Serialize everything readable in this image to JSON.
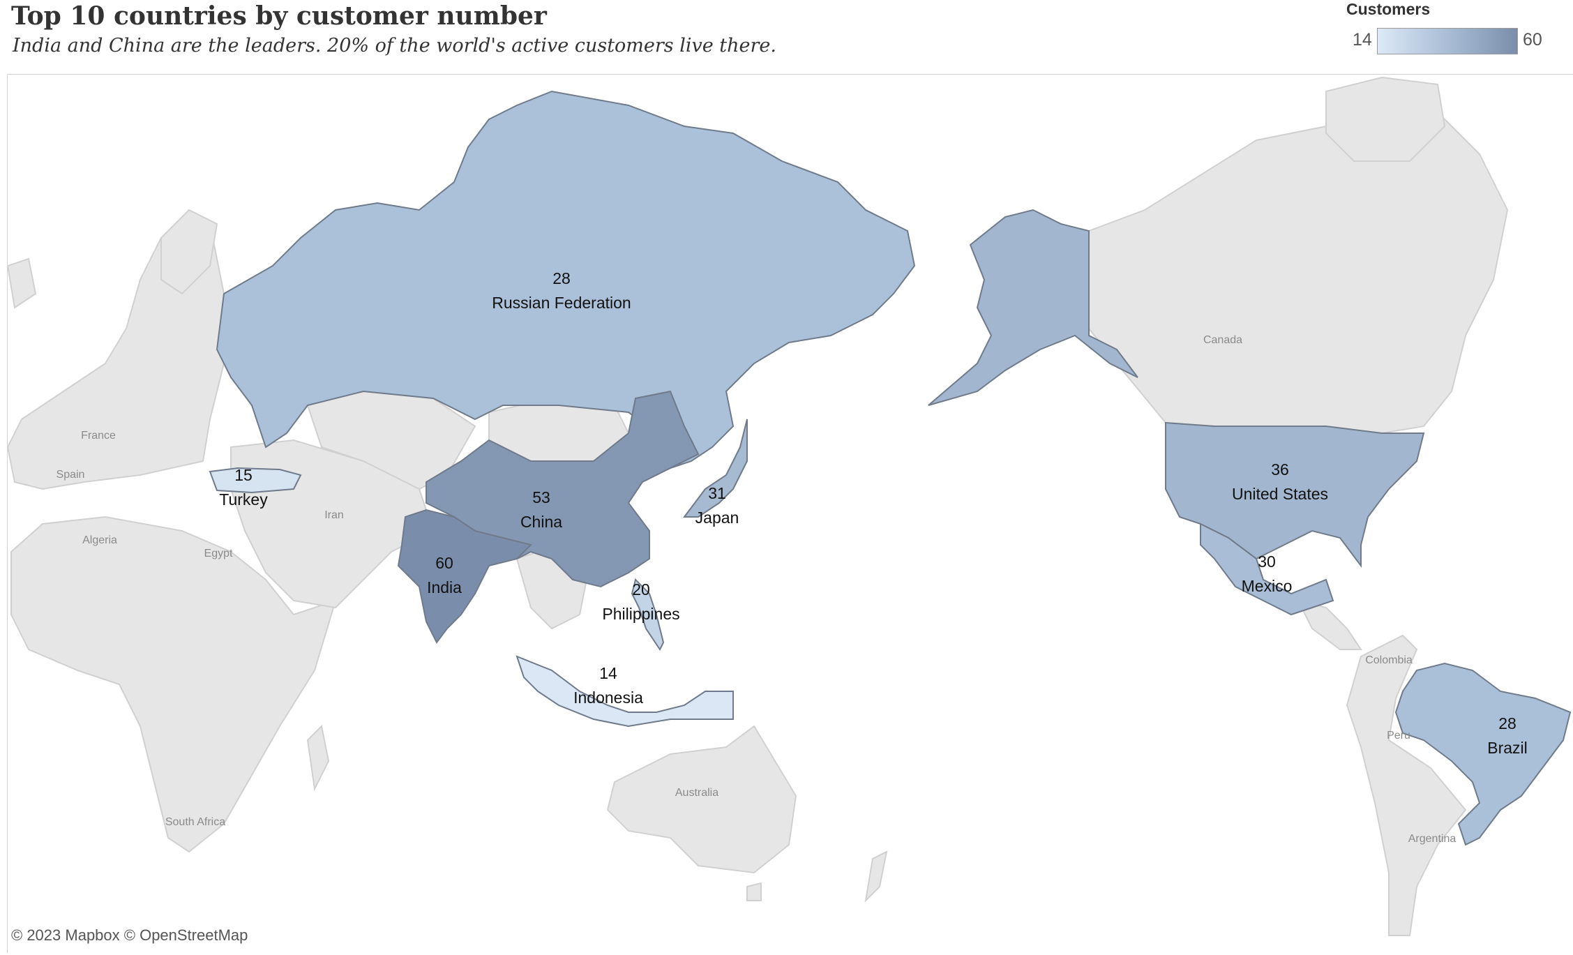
{
  "title": "Top 10 countries by customer number",
  "subtitle": "India and China are the leaders. 20% of the world's active customers live there.",
  "legend": {
    "title": "Customers",
    "min": "14",
    "max": "60",
    "color_min": "#dce9f6",
    "color_max": "#7a8eab"
  },
  "credits": "© 2023 Mapbox © OpenStreetMap",
  "base_labels": {
    "canada": "Canada",
    "france": "France",
    "spain": "Spain",
    "algeria": "Algeria",
    "egypt": "Egypt",
    "iran": "Iran",
    "australia": "Australia",
    "south_africa": "South Africa",
    "colombia": "Colombia",
    "peru": "Peru",
    "argentina": "Argentina"
  },
  "countries": [
    {
      "name": "India",
      "customers": 60
    },
    {
      "name": "China",
      "customers": 53
    },
    {
      "name": "United States",
      "customers": 36
    },
    {
      "name": "Japan",
      "customers": 31
    },
    {
      "name": "Mexico",
      "customers": 30
    },
    {
      "name": "Russian Federation",
      "customers": 28
    },
    {
      "name": "Brazil",
      "customers": 28
    },
    {
      "name": "Philippines",
      "customers": 20
    },
    {
      "name": "Turkey",
      "customers": 15
    },
    {
      "name": "Indonesia",
      "customers": 14
    }
  ]
}
